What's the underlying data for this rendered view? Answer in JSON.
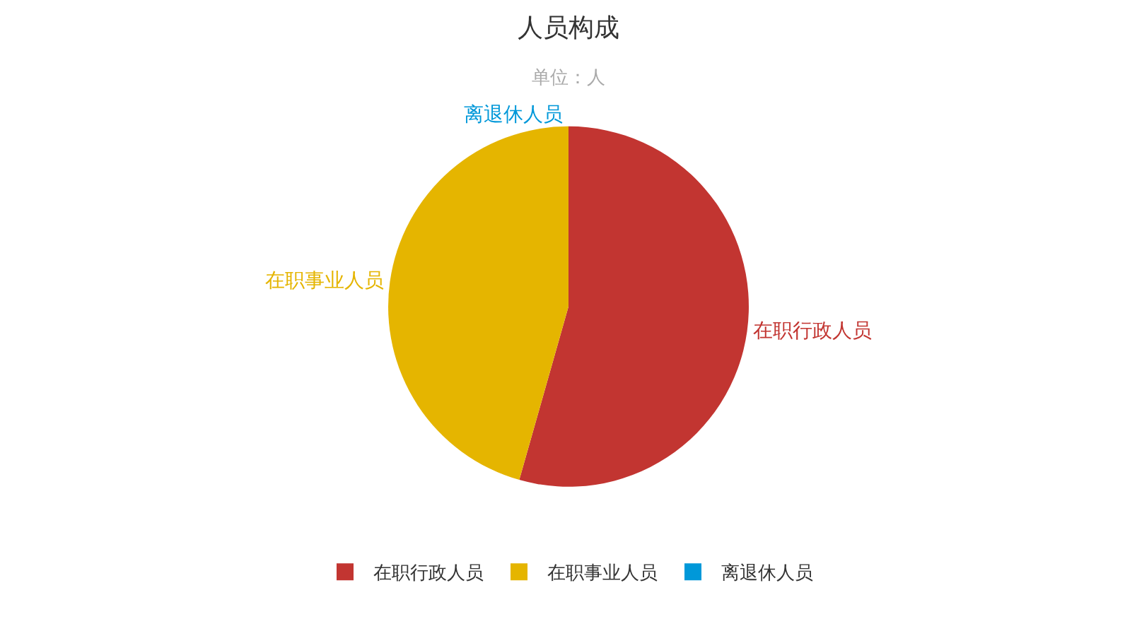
{
  "chart_data": {
    "type": "pie",
    "title": "人员构成",
    "subtitle": "单位：人",
    "categories": [
      "在职行政人员",
      "在职事业人员",
      "离退休人员"
    ],
    "values": [
      54.4,
      45.6,
      0
    ],
    "colors": [
      "#c23531",
      "#e5b500",
      "#0098d9"
    ],
    "legend": "bottom"
  }
}
